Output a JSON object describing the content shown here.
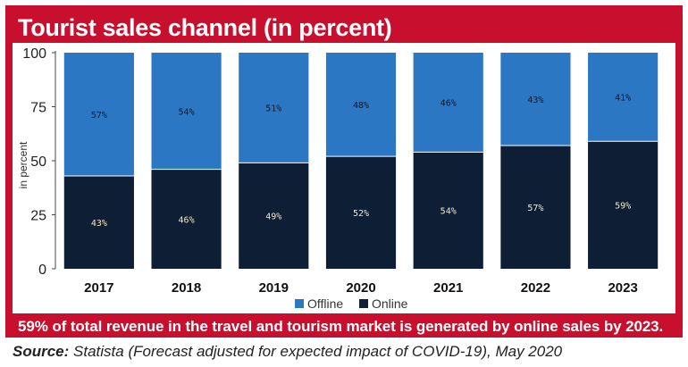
{
  "header": {
    "title": "Tourist sales channel (in percent)"
  },
  "footer": {
    "note": "59% of total revenue in the travel and tourism market is generated by online sales by 2023.",
    "source_label": "Source:",
    "source_text": "Statista (Forecast adjusted for expected impact of COVID-19), May 2020"
  },
  "colors": {
    "frame": "#c8102e",
    "offline": "#2b77c3",
    "online": "#0d1e35"
  },
  "chart_data": {
    "type": "bar",
    "stacked": true,
    "categories": [
      "2017",
      "2018",
      "2019",
      "2020",
      "2021",
      "2022",
      "2023"
    ],
    "series": [
      {
        "name": "Online",
        "values": [
          43,
          46,
          49,
          52,
          54,
          57,
          59
        ],
        "labels": [
          "43%",
          "46%",
          "49%",
          "52%",
          "54%",
          "57%",
          "59%"
        ]
      },
      {
        "name": "Offline",
        "values": [
          57,
          54,
          51,
          48,
          46,
          43,
          41
        ],
        "labels": [
          "57%",
          "54%",
          "51%",
          "48%",
          "46%",
          "43%",
          "41%"
        ]
      }
    ],
    "ylabel": "in percent",
    "ylim": [
      0,
      100
    ],
    "yticks": [
      "0",
      "25",
      "50",
      "75",
      "100"
    ],
    "legend": "bottom-center",
    "grid": false
  }
}
